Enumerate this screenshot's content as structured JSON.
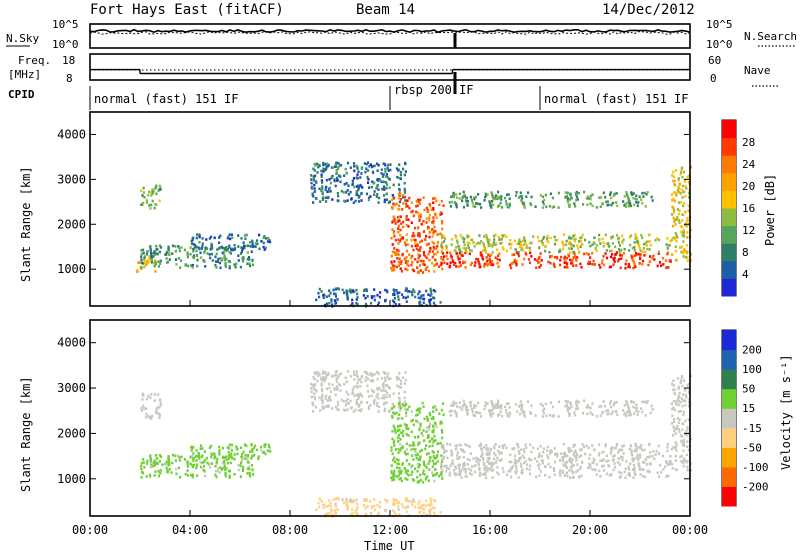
{
  "header": {
    "title": "Fort Hays East (fitACF)",
    "beam": "Beam 14",
    "date": "14/Dec/2012"
  },
  "noise_panel": {
    "left_label": "N.Sky",
    "right_label": "N.Search",
    "left_ticks": [
      "10^5",
      "10^0"
    ],
    "right_ticks": [
      "10^5",
      "10^0"
    ]
  },
  "freq_panel": {
    "left_label_line1": "Freq.",
    "left_label_line2": "[MHz]",
    "right_label": "Nave",
    "left_ticks": [
      "18",
      "8"
    ],
    "right_ticks": [
      "60",
      "0"
    ]
  },
  "cpid": {
    "label": "CPID",
    "segments": [
      {
        "name": "normal (fast) 151 IF",
        "start_h": 0,
        "end_h": 12
      },
      {
        "name": "rbsp 200 IF",
        "start_h": 12,
        "end_h": 18
      },
      {
        "name": "normal (fast) 151 IF",
        "start_h": 18,
        "end_h": 24
      }
    ]
  },
  "x_axis": {
    "label": "Time UT",
    "ticks": [
      "00:00",
      "04:00",
      "08:00",
      "12:00",
      "16:00",
      "20:00",
      "00:00"
    ]
  },
  "power_panel": {
    "ylabel": "Slant Range [km]",
    "yticks": [
      "1000",
      "2000",
      "3000",
      "4000"
    ],
    "colorbar_label": "Power [dB]",
    "colorbar_ticks": [
      "4",
      "8",
      "12",
      "16",
      "20",
      "24",
      "28"
    ],
    "colors": [
      "#1f28d6",
      "#1c5fa8",
      "#2f7f68",
      "#55a65a",
      "#8cbc40",
      "#ffc000",
      "#ffa200",
      "#ff7a00",
      "#ff3a00",
      "#ff0000"
    ]
  },
  "velocity_panel": {
    "ylabel": "Slant Range [km]",
    "yticks": [
      "1000",
      "2000",
      "3000",
      "4000"
    ],
    "colorbar_label": "Velocity [m s⁻¹]",
    "colorbar_ticks": [
      "200",
      "100",
      "50",
      "15",
      "-15",
      "-50",
      "-100",
      "-200"
    ],
    "colors": [
      "#1c2ad6",
      "#1f63b0",
      "#2e8050",
      "#6fd033",
      "#c8c8c0",
      "#ffd080",
      "#ffa500",
      "#ff6a00",
      "#ff0000"
    ]
  },
  "chart_data": {
    "type": "heatmap",
    "title": "Fort Hays East (fitACF)",
    "xlabel": "Time UT",
    "ylabel": "Slant Range [km]",
    "x_range_hours": [
      0,
      24
    ],
    "y_range_km": [
      180,
      4500
    ],
    "power_scale_db": [
      0,
      30
    ],
    "velocity_scale_ms": [
      -250,
      250
    ],
    "power_regions": [
      {
        "t0": 1.8,
        "t1": 2.6,
        "r0": 950,
        "r1": 1350,
        "db": 18
      },
      {
        "t0": 2.0,
        "t1": 6.5,
        "r0": 1050,
        "r1": 1550,
        "db": 9
      },
      {
        "t0": 2.0,
        "t1": 2.8,
        "r0": 2350,
        "r1": 2900,
        "db": 12
      },
      {
        "t0": 4.0,
        "t1": 7.2,
        "r0": 1450,
        "r1": 1800,
        "db": 6
      },
      {
        "t0": 8.8,
        "t1": 12.6,
        "r0": 2500,
        "r1": 3400,
        "db": 6
      },
      {
        "t0": 12.0,
        "t1": 14.1,
        "r0": 950,
        "r1": 2700,
        "db": 24
      },
      {
        "t0": 14.0,
        "t1": 23.2,
        "r0": 1050,
        "r1": 1400,
        "db": 26
      },
      {
        "t0": 14.0,
        "t1": 23.2,
        "r0": 1400,
        "r1": 1800,
        "db": 14
      },
      {
        "t0": 14.2,
        "t1": 22.5,
        "r0": 2400,
        "r1": 2750,
        "db": 10
      },
      {
        "t0": 23.2,
        "t1": 24.0,
        "r0": 1200,
        "r1": 3300,
        "db": 16
      },
      {
        "t0": 9.0,
        "t1": 14.0,
        "r0": 200,
        "r1": 600,
        "db": 5
      }
    ],
    "velocity_regions": [
      {
        "t0": 2.0,
        "t1": 6.5,
        "r0": 1050,
        "r1": 1550,
        "v": 40
      },
      {
        "t0": 4.0,
        "t1": 7.2,
        "r0": 1450,
        "r1": 1800,
        "v": 40
      },
      {
        "t0": 2.0,
        "t1": 2.8,
        "r0": 2350,
        "r1": 2900,
        "v": 0
      },
      {
        "t0": 8.8,
        "t1": 12.6,
        "r0": 2500,
        "r1": 3400,
        "v": 0
      },
      {
        "t0": 12.0,
        "t1": 14.1,
        "r0": 950,
        "r1": 2700,
        "v": 40
      },
      {
        "t0": 14.0,
        "t1": 23.2,
        "r0": 1050,
        "r1": 1800,
        "v": 0
      },
      {
        "t0": 14.2,
        "t1": 22.5,
        "r0": 2400,
        "r1": 2750,
        "v": 0
      },
      {
        "t0": 23.2,
        "t1": 24.0,
        "r0": 1200,
        "r1": 3300,
        "v": 0
      },
      {
        "t0": 9.0,
        "t1": 14.0,
        "r0": 200,
        "r1": 600,
        "v": -40
      }
    ],
    "frequency_mhz": [
      {
        "t0": 0,
        "t1": 2.0,
        "f": 12
      },
      {
        "t0": 2.0,
        "t1": 14.5,
        "f": 10.5
      },
      {
        "t0": 14.5,
        "t1": 24,
        "f": 12
      }
    ],
    "grid": false
  }
}
